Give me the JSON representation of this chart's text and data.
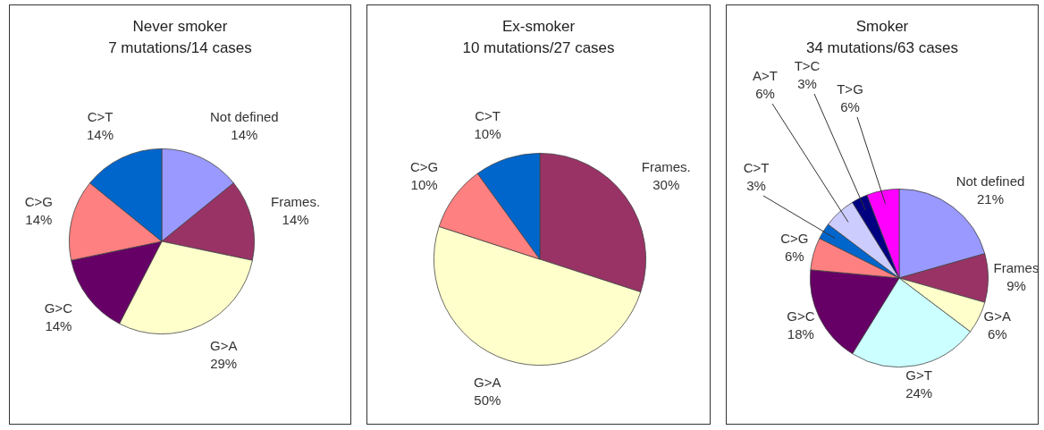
{
  "chart_data": [
    {
      "type": "pie",
      "title": "Never smoker",
      "subtitle": "7 mutations/14 cases",
      "categories": [
        "Not defined",
        "Frames.",
        "G>A",
        "G>C",
        "C>G",
        "C>T"
      ],
      "values": [
        14,
        14,
        29,
        14,
        14,
        14
      ],
      "value_labels": [
        "14%",
        "14%",
        "29%",
        "14%",
        "14%",
        "14%"
      ],
      "colors": [
        "#9999ff",
        "#993366",
        "#ffffcc",
        "#660066",
        "#ff8080",
        "#0066cc"
      ],
      "legend": false
    },
    {
      "type": "pie",
      "title": "Ex-smoker",
      "subtitle": "10 mutations/27 cases",
      "categories": [
        "Frames.",
        "G>A",
        "C>G",
        "C>T"
      ],
      "values": [
        30,
        50,
        10,
        10
      ],
      "value_labels": [
        "30%",
        "50%",
        "10%",
        "10%"
      ],
      "colors": [
        "#993366",
        "#ffffcc",
        "#ff8080",
        "#0066cc"
      ],
      "legend": false
    },
    {
      "type": "pie",
      "title": "Smoker",
      "subtitle": "34 mutations/63 cases",
      "categories": [
        "Not defined",
        "Frames",
        "G>A",
        "G>T",
        "G>C",
        "C>G",
        "C>T",
        "A>T",
        "T>C",
        "T>G"
      ],
      "values": [
        21,
        9,
        6,
        24,
        18,
        6,
        3,
        6,
        3,
        6
      ],
      "value_labels": [
        "21%",
        "9%",
        "6%",
        "24%",
        "18%",
        "6%",
        "3%",
        "6%",
        "3%",
        "6%"
      ],
      "colors": [
        "#9999ff",
        "#993366",
        "#ffffcc",
        "#ccffff",
        "#660066",
        "#ff8080",
        "#0066cc",
        "#ccccff",
        "#000080",
        "#ff00ff"
      ],
      "legend": false
    }
  ]
}
